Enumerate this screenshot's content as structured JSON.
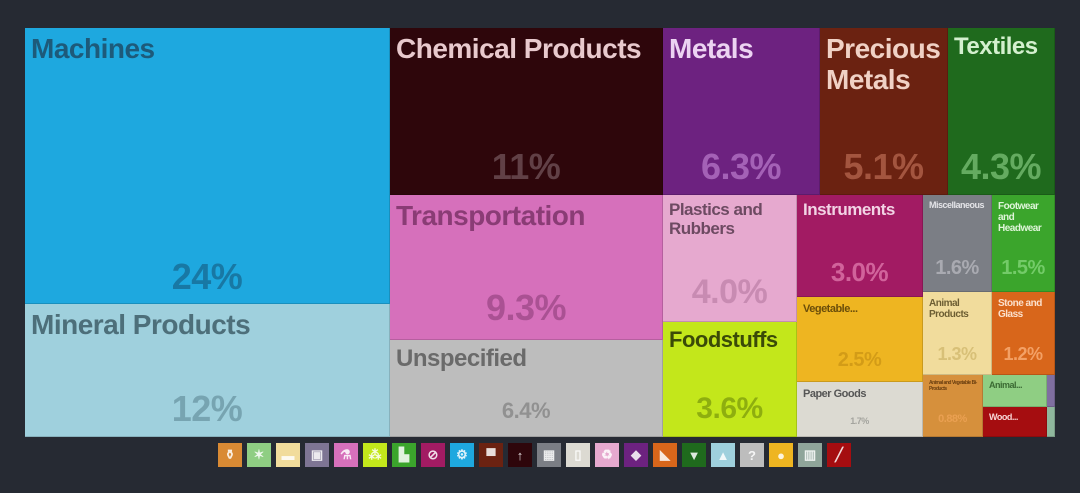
{
  "chart_data": {
    "type": "treemap",
    "unit": "%",
    "cells": [
      {
        "name": "Machines",
        "value": 24,
        "pct_label": "24%",
        "color": "#1ea8df"
      },
      {
        "name": "Mineral Products",
        "value": 12,
        "pct_label": "12%",
        "color": "#9fd0dd"
      },
      {
        "name": "Chemical Products",
        "value": 11,
        "pct_label": "11%",
        "color": "#2e060b"
      },
      {
        "name": "Transportation",
        "value": 9.3,
        "pct_label": "9.3%",
        "color": "#d670bb"
      },
      {
        "name": "Unspecified",
        "value": 6.4,
        "pct_label": "6.4%",
        "color": "#bdbdbd"
      },
      {
        "name": "Metals",
        "value": 6.3,
        "pct_label": "6.3%",
        "color": "#6d2280"
      },
      {
        "name": "Precious Metals",
        "value": 5.1,
        "pct_label": "5.1%",
        "color": "#6b2211"
      },
      {
        "name": "Textiles",
        "value": 4.3,
        "pct_label": "4.3%",
        "color": "#1f6a1d"
      },
      {
        "name": "Plastics and Rubbers",
        "value": 4.0,
        "pct_label": "4.0%",
        "color": "#e6a9cf"
      },
      {
        "name": "Foodstuffs",
        "value": 3.6,
        "pct_label": "3.6%",
        "color": "#c3e71b"
      },
      {
        "name": "Instruments",
        "value": 3.0,
        "pct_label": "3.0%",
        "color": "#a21b63"
      },
      {
        "name": "Miscellaneous",
        "value": 1.6,
        "pct_label": "1.6%",
        "color": "#7b7e85"
      },
      {
        "name": "Footwear and Headwear",
        "value": 1.5,
        "pct_label": "1.5%",
        "color": "#3ba52c"
      },
      {
        "name": "Vegetable...",
        "value": 2.5,
        "pct_label": "2.5%",
        "color": "#eeb521"
      },
      {
        "name": "Animal Products",
        "value": 1.3,
        "pct_label": "1.3%",
        "color": "#f1dc9c"
      },
      {
        "name": "Stone and Glass",
        "value": 1.2,
        "pct_label": "1.2%",
        "color": "#d8661b"
      },
      {
        "name": "Paper Goods",
        "value": 1.7,
        "pct_label": "1.7%",
        "color": "#dcdad2"
      },
      {
        "name": "Animal and Vegetable Bi-Products",
        "value": 0.88,
        "pct_label": "0.88%",
        "color": "#d6903c"
      },
      {
        "name": "Animal...",
        "color": "#8fce83"
      },
      {
        "name": "Wood...",
        "color": "#a50d10"
      },
      {
        "name": "",
        "color": "#7f6fa0"
      },
      {
        "name": "",
        "color": "#8fb79d"
      }
    ]
  },
  "legend": {
    "items": [
      {
        "icon": "bottle-icon",
        "color": "#d98a34"
      },
      {
        "icon": "hide-icon",
        "color": "#8fce83"
      },
      {
        "icon": "egg-icon",
        "color": "#f1dc9c"
      },
      {
        "icon": "picture-frame-icon",
        "color": "#7e7594"
      },
      {
        "icon": "flask-icon",
        "color": "#d670bb"
      },
      {
        "icon": "grain-icon",
        "color": "#c3e71b"
      },
      {
        "icon": "shoe-icon",
        "color": "#3ba52c"
      },
      {
        "icon": "instrument-icon",
        "color": "#a21b63"
      },
      {
        "icon": "gears-icon",
        "color": "#1ea8df"
      },
      {
        "icon": "anvil-icon",
        "color": "#6b2211"
      },
      {
        "icon": "pickaxe-icon",
        "color": "#2e060b"
      },
      {
        "icon": "box-icon",
        "color": "#7b7e85"
      },
      {
        "icon": "paper-icon",
        "color": "#dcdad2"
      },
      {
        "icon": "recycle-icon",
        "color": "#e6a9cf"
      },
      {
        "icon": "diamond-icon",
        "color": "#6d2280"
      },
      {
        "icon": "stone-icon",
        "color": "#d8661b"
      },
      {
        "icon": "shirt-icon",
        "color": "#1f6a1d"
      },
      {
        "icon": "road-icon",
        "color": "#9fd0dd"
      },
      {
        "icon": "question-icon",
        "color": "#bdbdbd"
      },
      {
        "icon": "fruit-icon",
        "color": "#eeb521"
      },
      {
        "icon": "building-icon",
        "color": "#8fa59a"
      },
      {
        "icon": "wood-plank-icon",
        "color": "#a50d10"
      }
    ]
  }
}
